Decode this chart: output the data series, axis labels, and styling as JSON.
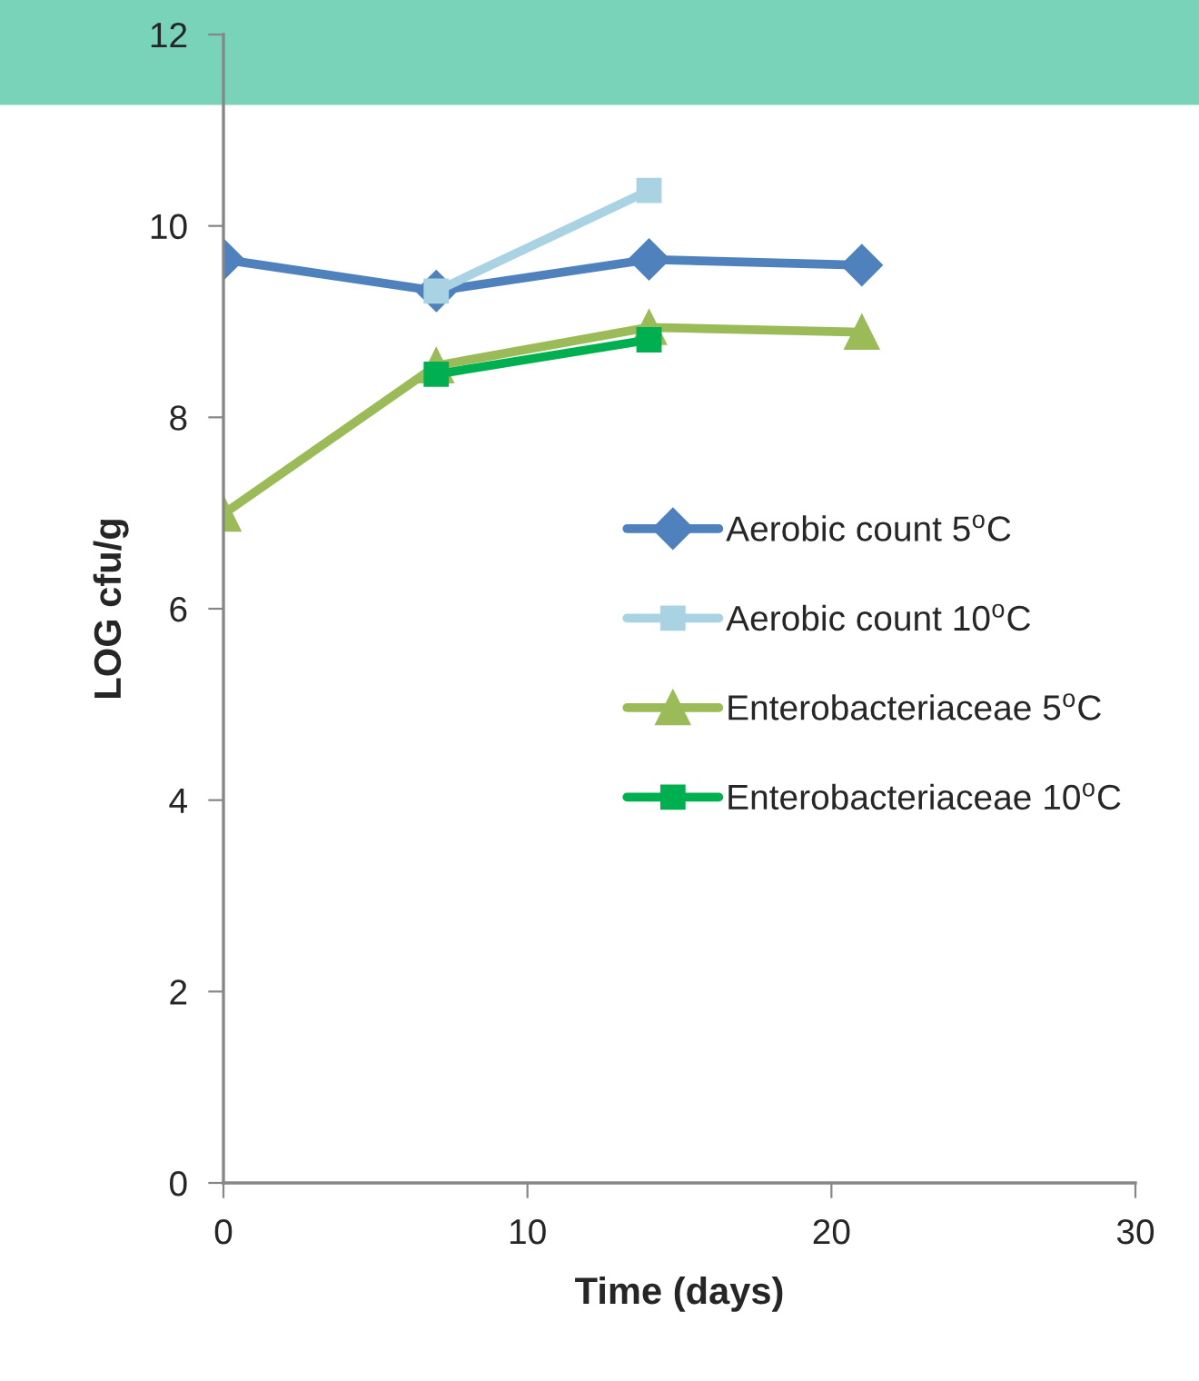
{
  "chart_data": {
    "type": "line",
    "xlabel": "Time (days)",
    "ylabel": "LOG cfu/g",
    "xlim": [
      0,
      30
    ],
    "xticks": [
      0,
      10,
      20,
      30
    ],
    "ylim": [
      0,
      12
    ],
    "yticks": [
      0,
      2,
      4,
      6,
      8,
      10,
      12
    ],
    "grid": false,
    "legend": "right",
    "line_style": "solid",
    "series": [
      {
        "name": "Aerobic count 5$^{o}$C",
        "color": "#4f81bd",
        "marker": "diamond",
        "x": [
          0,
          7,
          14,
          21
        ],
        "values": [
          9.65,
          9.32,
          9.65,
          9.59
        ]
      },
      {
        "name": "Aerobic count 10$^{o}$C",
        "color": "#a9d3e3",
        "marker": "square",
        "x": [
          7,
          14
        ],
        "values": [
          9.32,
          10.37
        ]
      },
      {
        "name": "Enterobacteriaceae 5$^{o}$C",
        "color": "#9bbb59",
        "marker": "triangle",
        "x": [
          0,
          7,
          14,
          21
        ],
        "values": [
          6.99,
          8.54,
          8.94,
          8.89
        ]
      },
      {
        "name": "Enterobacteriaceae 10$^{o}$C",
        "color": "#00b050",
        "marker": "square",
        "x": [
          7,
          14
        ],
        "values": [
          8.45,
          8.81
        ]
      }
    ]
  }
}
